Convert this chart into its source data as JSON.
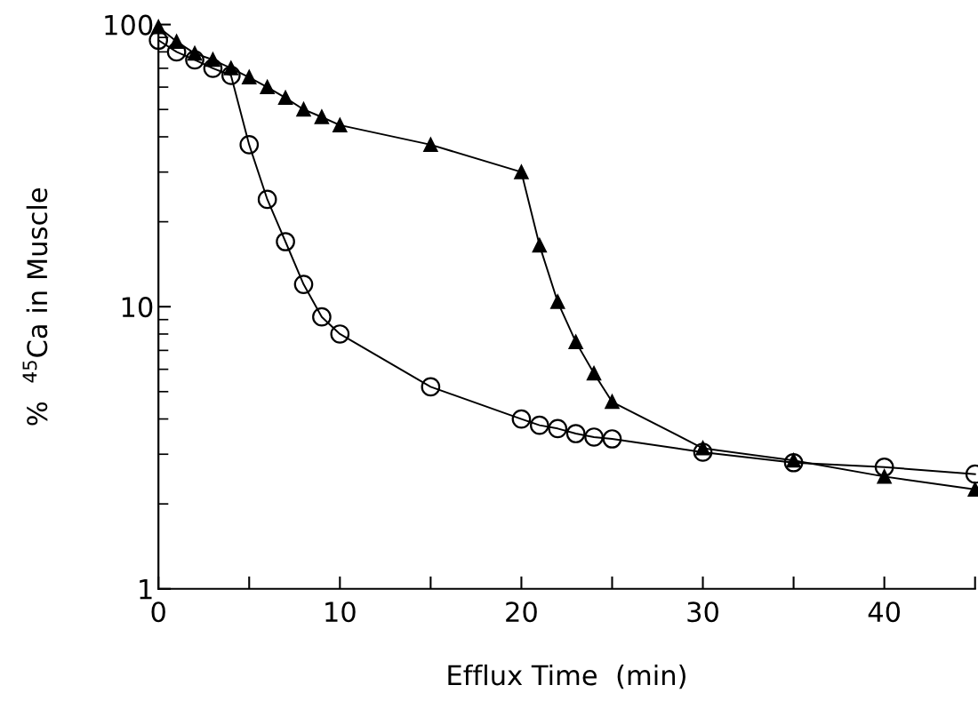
{
  "chart_data": {
    "type": "line",
    "xlabel": "Efflux Time  (min)",
    "ylabel": "%  $^{45}$Ca in Muscle",
    "log": "y",
    "xlim": [
      0,
      45
    ],
    "ylim": [
      1,
      100
    ],
    "xticks": [
      0,
      {
        "value": 5,
        "label": null
      },
      10,
      {
        "value": 15,
        "label": null
      },
      20,
      {
        "value": 25,
        "label": null
      },
      30,
      {
        "value": 35,
        "label": null
      },
      40,
      {
        "value": 45,
        "label": null
      }
    ],
    "yticks": [
      1,
      10,
      100
    ],
    "grid": false,
    "legend": false,
    "series": [
      {
        "color": "#000000",
        "marker": "circle",
        "line_style": "solid",
        "x": [
          0,
          1,
          2,
          3,
          4,
          5,
          6,
          7,
          8,
          9,
          10,
          15,
          20,
          21,
          22,
          23,
          24,
          25,
          30,
          35,
          40,
          45
        ],
        "values": [
          88,
          80,
          75,
          70,
          66,
          37.5,
          24,
          17,
          12,
          9.2,
          8.0,
          5.2,
          4.0,
          3.8,
          3.7,
          3.55,
          3.45,
          3.4,
          3.05,
          2.8,
          2.7,
          2.55
        ]
      },
      {
        "color": "#000000",
        "marker": "triangle",
        "line_style": "solid",
        "x": [
          0,
          1,
          2,
          3,
          4,
          5,
          6,
          7,
          8,
          9,
          10,
          15,
          20,
          21,
          22,
          23,
          24,
          25,
          30,
          35,
          40,
          45
        ],
        "values": [
          98,
          87,
          79,
          75,
          70,
          65,
          60,
          55,
          50,
          47,
          44,
          37.5,
          30,
          16.5,
          10.4,
          7.5,
          5.8,
          4.6,
          3.15,
          2.85,
          2.5,
          2.25
        ]
      }
    ]
  }
}
